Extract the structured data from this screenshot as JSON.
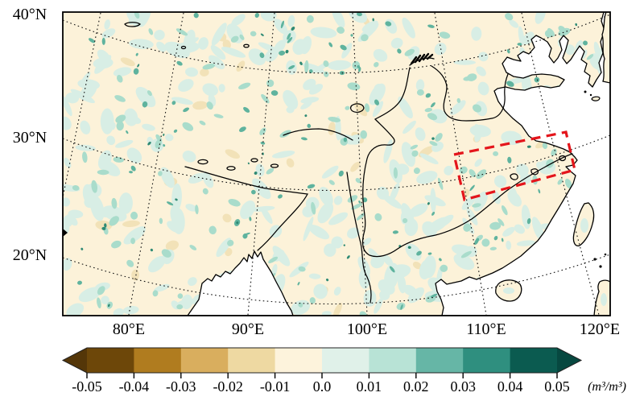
{
  "map": {
    "lat_labels": [
      "40°N",
      "30°N",
      "20°N"
    ],
    "lon_labels": [
      "80°E",
      "90°E",
      "100°E",
      "110°E",
      "120°E"
    ],
    "land_color": "#fcf2d9",
    "sea_color": "#ffffff",
    "coast_color": "#000000",
    "field_colors": [
      "#d8eee5",
      "#a9dccb",
      "#5fb39e",
      "#2f8a74",
      "#f2e2b8"
    ],
    "region_box": {
      "color": "#e4151b"
    }
  },
  "colorbar": {
    "tick_labels": [
      "-0.05",
      "-0.04",
      "-0.03",
      "-0.02",
      "-0.01",
      "0.0",
      "0.01",
      "0.02",
      "0.03",
      "0.04",
      "0.05"
    ],
    "units": "(m³/m³)",
    "segment_colors": [
      "#6d4709",
      "#b07c1f",
      "#d9ae5e",
      "#eed9a2",
      "#fdf3dc",
      "#e0f1e9",
      "#b8e3d6",
      "#66b6a6",
      "#2f8f7f",
      "#0b5b50"
    ],
    "arrow_left_color": "#543608",
    "arrow_right_color": "#074840"
  }
}
